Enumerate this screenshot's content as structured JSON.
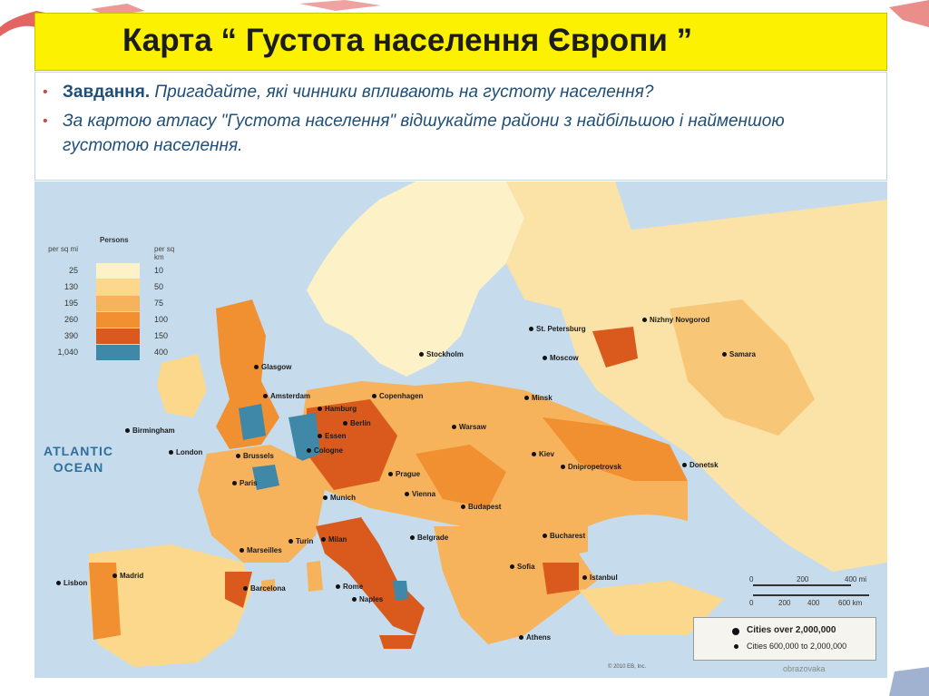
{
  "slide": {
    "title": "Карта “ Густота населення Європи ”",
    "task_lead": "Завдання.",
    "task_question": "Пригадайте, які чинники впливають на густоту населення?",
    "task_instruction": "За картою атласу \"Густота населення\" відшукайте райони з найбільшою і найменшою густотою населення."
  },
  "map": {
    "legend": {
      "title": "Persons",
      "left_unit": "per sq mi",
      "right_unit": "per sq km",
      "left_values": [
        "25",
        "130",
        "195",
        "260",
        "390",
        "1,040"
      ],
      "right_values": [
        "10",
        "50",
        "75",
        "100",
        "150",
        "400"
      ],
      "colors": [
        "#fdf1c8",
        "#fbd88c",
        "#f7b35b",
        "#f09030",
        "#d95a1c",
        "#3f88a8"
      ]
    },
    "ocean_label": "ATLANTIC\nOCEAN",
    "city_labels": [
      "Glasgow",
      "Amsterdam",
      "Hamburg",
      "Berlin",
      "Copenhagen",
      "Stockholm",
      "St. Petersburg",
      "Nizhny Novgorod",
      "Moscow",
      "Samara",
      "Minsk",
      "Warsaw",
      "Birmingham",
      "London",
      "Brussels",
      "Essen",
      "Cologne",
      "Paris",
      "Prague",
      "Kiev",
      "Dnipropetrovsk",
      "Donetsk",
      "Vienna",
      "Munich",
      "Budapest",
      "Turin",
      "Milan",
      "Marseilles",
      "Belgrade",
      "Bucharest",
      "Sofia",
      "Madrid",
      "Lisbon",
      "Barcelona",
      "Rome",
      "Naples",
      "Istanbul",
      "Athens"
    ],
    "scale": {
      "mi_labels": [
        "0",
        "200",
        "400 mi"
      ],
      "km_labels": [
        "0",
        "200",
        "400",
        "600 km"
      ]
    },
    "cities_legend": {
      "big": "Cities over 2,000,000",
      "small": "Cities 600,000 to 2,000,000"
    },
    "copyright": "© 2010 EB, Inc.",
    "watermark": "obrazovaka"
  }
}
